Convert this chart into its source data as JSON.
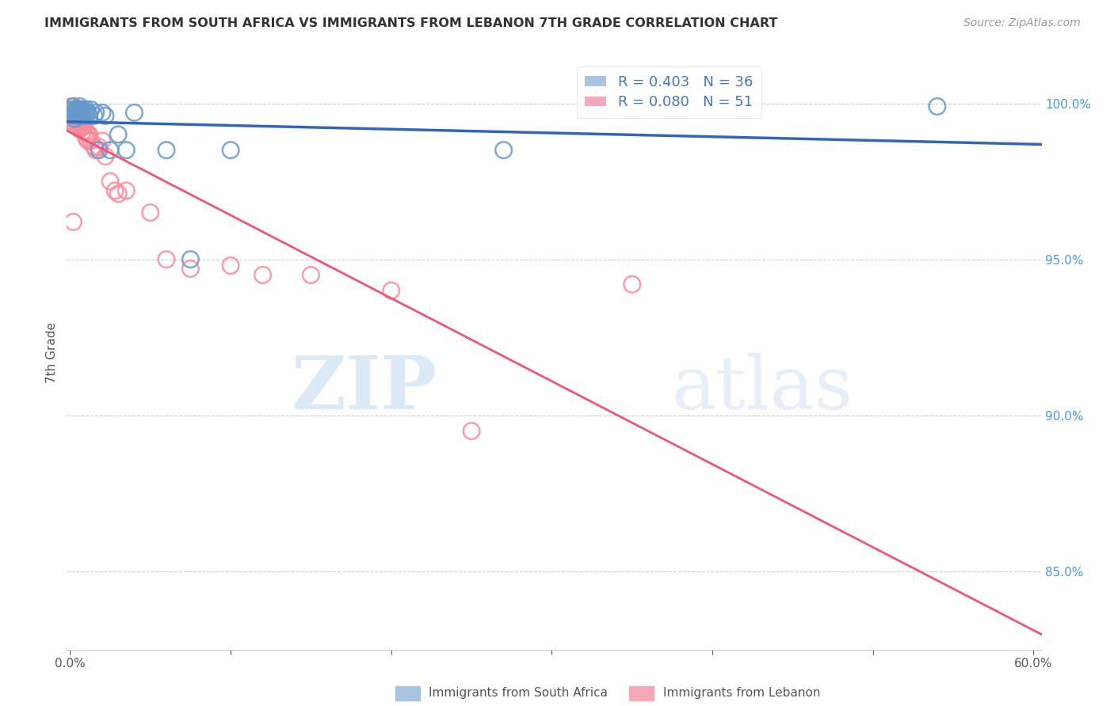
{
  "title": "IMMIGRANTS FROM SOUTH AFRICA VS IMMIGRANTS FROM LEBANON 7TH GRADE CORRELATION CHART",
  "source": "Source: ZipAtlas.com",
  "ylabel": "7th Grade",
  "right_ytick_labels": [
    "85.0%",
    "90.0%",
    "95.0%",
    "100.0%"
  ],
  "right_ytick_values": [
    0.85,
    0.9,
    0.95,
    1.0
  ],
  "ylim": [
    0.825,
    1.015
  ],
  "xlim": [
    -0.002,
    0.605
  ],
  "legend_blue_r": "R = 0.403",
  "legend_blue_n": "N = 36",
  "legend_pink_r": "R = 0.080",
  "legend_pink_n": "N = 51",
  "blue_color": "#6699CC",
  "pink_color": "#FF8899",
  "blue_line_color": "#3366BB",
  "pink_line_color": "#EE5577",
  "watermark_zip": "ZIP",
  "watermark_atlas": "atlas",
  "blue_scatter_x": [
    0.001,
    0.002,
    0.002,
    0.003,
    0.003,
    0.004,
    0.004,
    0.005,
    0.005,
    0.006,
    0.006,
    0.007,
    0.007,
    0.008,
    0.008,
    0.009,
    0.01,
    0.01,
    0.011,
    0.012,
    0.013,
    0.015,
    0.016,
    0.018,
    0.02,
    0.022,
    0.025,
    0.03,
    0.035,
    0.04,
    0.06,
    0.075,
    0.1,
    0.27,
    0.54,
    0.003
  ],
  "blue_scatter_y": [
    0.998,
    0.997,
    0.999,
    0.998,
    0.996,
    0.998,
    0.997,
    0.996,
    0.998,
    0.997,
    0.999,
    0.998,
    0.997,
    0.996,
    0.998,
    0.997,
    0.996,
    0.998,
    0.997,
    0.996,
    0.998,
    0.996,
    0.997,
    0.985,
    0.997,
    0.996,
    0.985,
    0.99,
    0.985,
    0.997,
    0.985,
    0.95,
    0.985,
    0.985,
    0.999,
    0.995
  ],
  "pink_scatter_x": [
    0.001,
    0.001,
    0.001,
    0.002,
    0.002,
    0.002,
    0.003,
    0.003,
    0.003,
    0.003,
    0.004,
    0.004,
    0.004,
    0.005,
    0.005,
    0.005,
    0.006,
    0.006,
    0.007,
    0.007,
    0.007,
    0.008,
    0.008,
    0.009,
    0.01,
    0.01,
    0.011,
    0.011,
    0.012,
    0.013,
    0.015,
    0.016,
    0.018,
    0.02,
    0.022,
    0.025,
    0.028,
    0.03,
    0.035,
    0.05,
    0.06,
    0.075,
    0.1,
    0.12,
    0.15,
    0.2,
    0.25,
    0.35,
    0.002,
    0.002,
    0.003
  ],
  "pink_scatter_y": [
    0.999,
    0.997,
    0.996,
    0.998,
    0.997,
    0.995,
    0.998,
    0.996,
    0.994,
    0.993,
    0.997,
    0.996,
    0.994,
    0.996,
    0.994,
    0.992,
    0.995,
    0.993,
    0.996,
    0.994,
    0.992,
    0.993,
    0.991,
    0.993,
    0.991,
    0.989,
    0.99,
    0.988,
    0.99,
    0.988,
    0.986,
    0.985,
    0.986,
    0.988,
    0.983,
    0.975,
    0.972,
    0.971,
    0.972,
    0.965,
    0.95,
    0.947,
    0.948,
    0.945,
    0.945,
    0.94,
    0.895,
    0.942,
    0.999,
    0.962,
    0.993
  ]
}
